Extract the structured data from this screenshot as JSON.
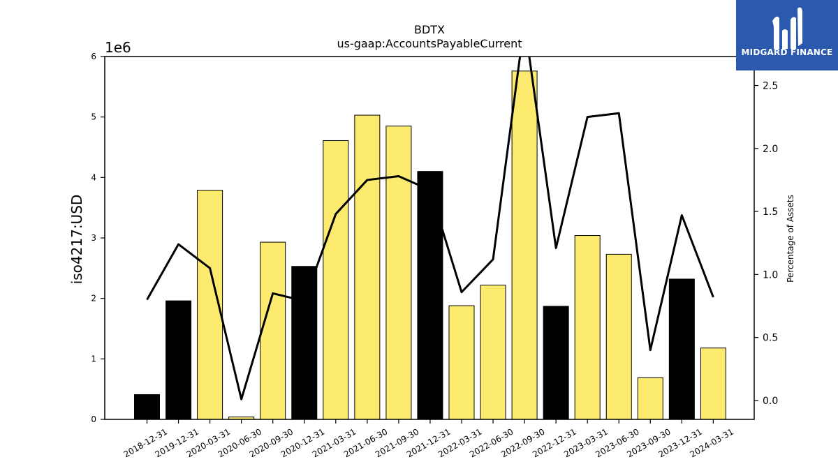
{
  "chart_data": {
    "type": "bar",
    "title": "BDTX",
    "subtitle": "us-gaap:AccountsPayableCurrent",
    "ylabel": "iso4217:USD",
    "y_offset_label": "1e6",
    "y2label": "Percentage of Assets",
    "categories": [
      "2018-12-31",
      "2019-12-31",
      "2020-03-31",
      "2020-06-30",
      "2020-09-30",
      "2020-12-31",
      "2021-03-31",
      "2021-06-30",
      "2021-09-30",
      "2021-12-31",
      "2022-03-31",
      "2022-06-30",
      "2022-09-30",
      "2022-12-31",
      "2023-03-31",
      "2023-06-30",
      "2023-09-30",
      "2023-12-31",
      "2024-03-31"
    ],
    "values": [
      0.41,
      1.96,
      3.79,
      0.04,
      2.93,
      2.53,
      4.61,
      5.03,
      4.85,
      4.1,
      1.88,
      2.22,
      5.76,
      1.87,
      3.04,
      2.73,
      0.69,
      2.32,
      1.18
    ],
    "annual_flags": [
      true,
      true,
      false,
      false,
      false,
      true,
      false,
      false,
      false,
      true,
      false,
      false,
      false,
      true,
      false,
      false,
      false,
      true,
      false
    ],
    "bar_colors": {
      "annual": "#000000",
      "quarterly": "#fdeb6f"
    },
    "line_series": {
      "name": "Percentage of Assets",
      "color": "#000000",
      "values": [
        0.8,
        1.24,
        1.05,
        0.01,
        0.85,
        0.79,
        1.48,
        1.75,
        1.78,
        1.67,
        0.86,
        1.12,
        3.0,
        1.21,
        2.25,
        2.28,
        0.4,
        1.47,
        0.82
      ]
    },
    "ylim": [
      0,
      6
    ],
    "y_ticks": [
      0,
      1,
      2,
      3,
      4,
      5,
      6
    ],
    "y2lim": [
      -0.15,
      2.73
    ],
    "y2_ticks": [
      0.0,
      0.5,
      1.0,
      1.5,
      2.0,
      2.5
    ],
    "y2_tick_labels": [
      "0.0",
      "0.5",
      "1.0",
      "1.5",
      "2.0",
      "2.5"
    ],
    "grid": false
  },
  "logo": {
    "text": "MIDGARD FINANCE",
    "background": "#2b59ae"
  }
}
